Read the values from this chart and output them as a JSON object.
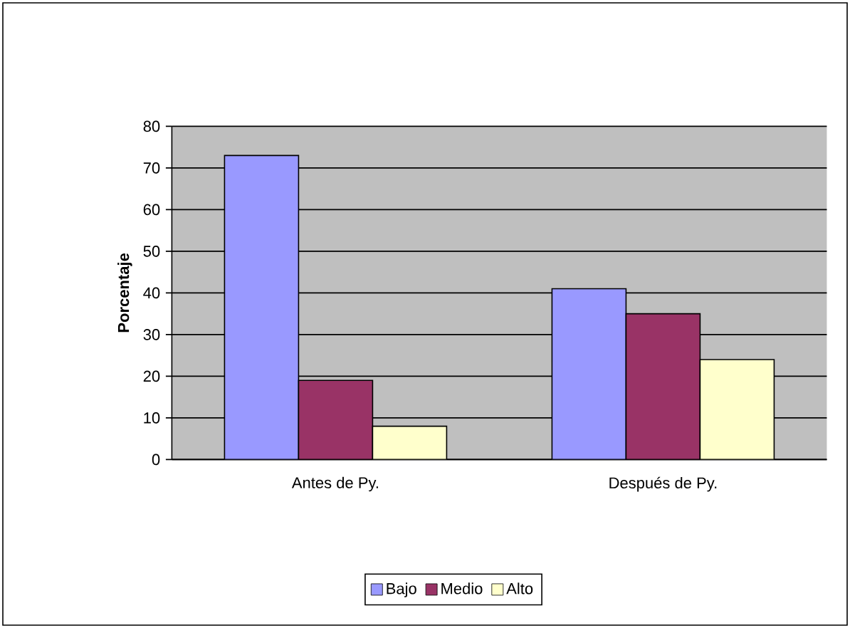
{
  "chart_data": {
    "type": "bar",
    "ylabel": "Porcentaje",
    "categories": [
      "Antes de Py.",
      "Después de Py."
    ],
    "series": [
      {
        "name": "Bajo",
        "color": "#9999ff",
        "values": [
          73,
          41
        ]
      },
      {
        "name": "Medio",
        "color": "#993366",
        "values": [
          19,
          35
        ]
      },
      {
        "name": "Alto",
        "color": "#ffffcc",
        "values": [
          8,
          24
        ]
      }
    ],
    "ylim": [
      0,
      80
    ],
    "yticks": [
      0,
      10,
      20,
      30,
      40,
      50,
      60,
      70,
      80
    ],
    "grid": "y",
    "legend": "bottom"
  }
}
